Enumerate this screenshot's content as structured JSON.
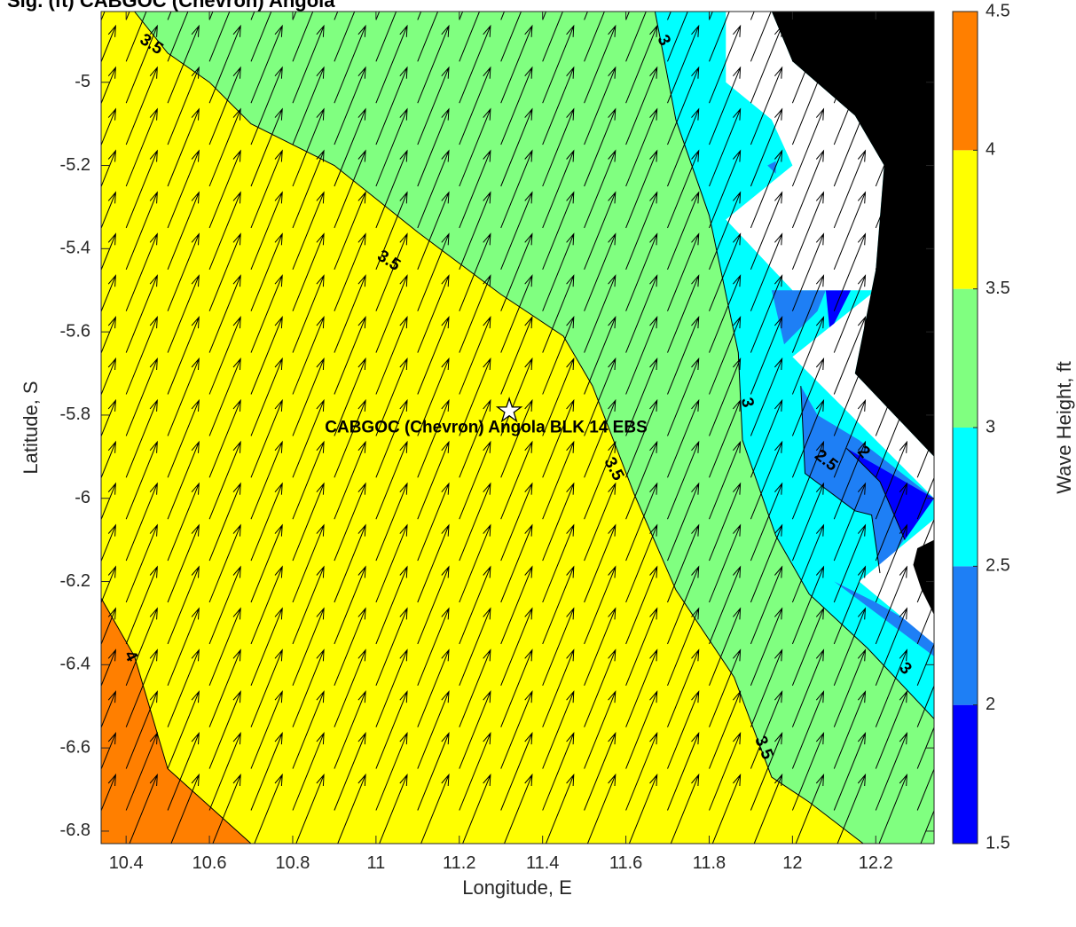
{
  "chart_data": {
    "type": "contour",
    "title": "Sig. (ft) CABGOC (Chevron) Angola",
    "xlabel": "Longitude, E",
    "ylabel": "Latitude, S",
    "xlim": [
      10.34,
      12.34
    ],
    "ylim": [
      -6.83,
      -4.83
    ],
    "x_ticks": [
      "10.4",
      "10.6",
      "10.8",
      "11",
      "11.2",
      "11.4",
      "11.6",
      "11.8",
      "12",
      "12.2"
    ],
    "y_ticks": [
      "-5",
      "-5.2",
      "-5.4",
      "-5.6",
      "-5.8",
      "-6",
      "-6.2",
      "-6.4",
      "-6.6",
      "-6.8"
    ],
    "colorbar": {
      "label": "Wave Height, ft",
      "ticks": [
        "1.5",
        "2",
        "2.5",
        "3",
        "3.5",
        "4",
        "4.5"
      ],
      "bands": [
        {
          "from": 1.5,
          "to": 2.0,
          "color": "#0000ff"
        },
        {
          "from": 2.0,
          "to": 2.5,
          "color": "#1e7ff5"
        },
        {
          "from": 2.5,
          "to": 3.0,
          "color": "#00ffff"
        },
        {
          "from": 3.0,
          "to": 3.5,
          "color": "#80ff80"
        },
        {
          "from": 3.5,
          "to": 4.0,
          "color": "#ffff00"
        },
        {
          "from": 4.0,
          "to": 4.5,
          "color": "#ff7f00"
        }
      ]
    },
    "land_color": "#000000",
    "no_data_color": "#ffffff",
    "contours": [
      {
        "level": 3.5,
        "points": [
          [
            10.42,
            -4.83
          ],
          [
            10.5,
            -4.93
          ],
          [
            10.6,
            -5.0
          ],
          [
            10.7,
            -5.1
          ],
          [
            10.9,
            -5.2
          ],
          [
            11.1,
            -5.36
          ],
          [
            11.3,
            -5.51
          ],
          [
            11.45,
            -5.61
          ],
          [
            11.52,
            -5.73
          ],
          [
            11.62,
            -5.99
          ],
          [
            11.72,
            -6.22
          ],
          [
            11.86,
            -6.43
          ],
          [
            11.95,
            -6.67
          ],
          [
            12.04,
            -6.73
          ],
          [
            12.17,
            -6.83
          ]
        ]
      },
      {
        "level": 4,
        "points": [
          [
            10.34,
            -6.24
          ],
          [
            10.42,
            -6.38
          ],
          [
            10.5,
            -6.65
          ],
          [
            10.7,
            -6.83
          ]
        ]
      },
      {
        "level": 3,
        "points": [
          [
            11.67,
            -4.83
          ],
          [
            11.72,
            -5.09
          ],
          [
            11.8,
            -5.32
          ],
          [
            11.87,
            -5.65
          ],
          [
            11.88,
            -5.86
          ],
          [
            11.96,
            -6.09
          ],
          [
            12.04,
            -6.23
          ],
          [
            12.18,
            -6.36
          ],
          [
            12.34,
            -6.53
          ]
        ]
      },
      {
        "level": 2.5,
        "points": [
          [
            12.02,
            -5.73
          ],
          [
            12.03,
            -5.94
          ],
          [
            12.15,
            -6.03
          ],
          [
            12.19,
            -6.04
          ],
          [
            12.21,
            -6.18
          ]
        ]
      },
      {
        "level": 2,
        "points": [
          [
            12.13,
            -5.88
          ],
          [
            12.21,
            -5.96
          ],
          [
            12.27,
            -6.1
          ]
        ]
      }
    ],
    "contour_labels": [
      {
        "text": "3.5",
        "x": 10.46,
        "y": -4.91,
        "angle": 33
      },
      {
        "text": "3.5",
        "x": 11.03,
        "y": -5.43,
        "angle": 33
      },
      {
        "text": "3.5",
        "x": 11.57,
        "y": -5.93,
        "angle": 62
      },
      {
        "text": "3.5",
        "x": 11.93,
        "y": -6.6,
        "angle": 68
      },
      {
        "text": "3",
        "x": 11.69,
        "y": -4.9,
        "angle": 62
      },
      {
        "text": "3",
        "x": 11.89,
        "y": -5.77,
        "angle": 77
      },
      {
        "text": "3",
        "x": 12.27,
        "y": -6.41,
        "angle": 45
      },
      {
        "text": "4",
        "x": 10.41,
        "y": -6.38,
        "angle": 62
      },
      {
        "text": "2.5",
        "x": 12.08,
        "y": -5.91,
        "angle": 38
      },
      {
        "text": "2",
        "x": 12.17,
        "y": -5.89,
        "angle": 48
      }
    ],
    "vectors": {
      "spacing_deg": 0.1,
      "direction_deg_from_north": 22,
      "length_deg": 0.2
    },
    "site": {
      "name": "CABGOC (Chevron)  Angola BLK 14  EBS",
      "lon": 11.32,
      "lat": -5.79,
      "marker": "star"
    }
  }
}
